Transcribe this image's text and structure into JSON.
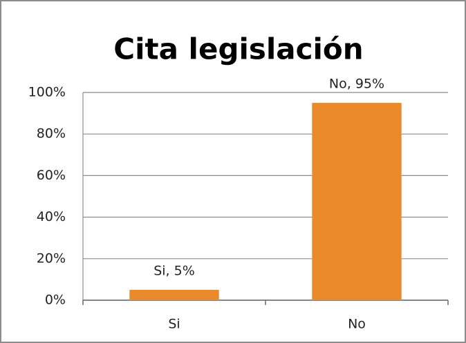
{
  "chart_data": {
    "type": "bar",
    "title": "Cita legislación",
    "categories": [
      "Si",
      "No"
    ],
    "values": [
      5,
      95
    ],
    "value_labels": [
      "Si, 5%",
      "No, 95%"
    ],
    "color": "#ea8a2a",
    "ylim": [
      0,
      100
    ],
    "yticks": [
      {
        "value": 0,
        "label": "0%"
      },
      {
        "value": 20,
        "label": "20%"
      },
      {
        "value": 40,
        "label": "40%"
      },
      {
        "value": 60,
        "label": "60%"
      },
      {
        "value": 80,
        "label": "80%"
      },
      {
        "value": 100,
        "label": "100%"
      }
    ],
    "grid": true
  }
}
